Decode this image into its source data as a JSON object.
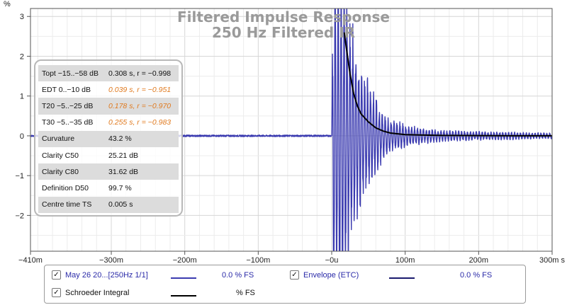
{
  "chart_data": {
    "type": "line",
    "title": "Filtered Impulse Response",
    "subtitle": "250 Hz Filtered IR",
    "ylabel": "%",
    "xlabel": "",
    "xlim": [
      -410,
      300
    ],
    "ylim": [
      -2.9,
      3.2
    ],
    "grid": true,
    "x_unit": "ms",
    "x_ticks": [
      {
        "value": -410,
        "label": "−410m"
      },
      {
        "value": -300,
        "label": "−300m"
      },
      {
        "value": -200,
        "label": "−200m"
      },
      {
        "value": -100,
        "label": "−100m"
      },
      {
        "value": 0,
        "label": "−0u"
      },
      {
        "value": 100,
        "label": "100m"
      },
      {
        "value": 200,
        "label": "200m"
      },
      {
        "value": 300,
        "label": "300m s"
      }
    ],
    "y_ticks": [
      {
        "value": 3,
        "label": "3"
      },
      {
        "value": 2,
        "label": "2"
      },
      {
        "value": 1,
        "label": "1"
      },
      {
        "value": 0,
        "label": "0"
      },
      {
        "value": -1,
        "label": "−1"
      },
      {
        "value": -2,
        "label": "−2"
      }
    ],
    "series": [
      {
        "name": "May 26 20...[250Hz 1/1]",
        "color": "#3b3bb0",
        "kind": "oscillation",
        "pre_noise_amplitude": 0.02,
        "envelope": [
          [
            0,
            0.05
          ],
          [
            2,
            5.0
          ],
          [
            10,
            5.0
          ],
          [
            20,
            4.0
          ],
          [
            30,
            2.8
          ],
          [
            40,
            2.0
          ],
          [
            50,
            1.5
          ],
          [
            60,
            1.05
          ],
          [
            70,
            0.6
          ],
          [
            80,
            0.45
          ],
          [
            100,
            0.3
          ],
          [
            120,
            0.22
          ],
          [
            150,
            0.15
          ],
          [
            200,
            0.12
          ],
          [
            250,
            0.1
          ],
          [
            300,
            0.08
          ]
        ],
        "period_ms": 4
      },
      {
        "name": "Envelope (ETC)",
        "color": "#1a1a6e",
        "kind": "hidden"
      },
      {
        "name": "Schroeder Integral",
        "color": "#000000",
        "kind": "curve",
        "points": [
          [
            17,
            2.6
          ],
          [
            20,
            2.2
          ],
          [
            25,
            1.55
          ],
          [
            30,
            1.05
          ],
          [
            35,
            0.75
          ],
          [
            40,
            0.55
          ],
          [
            50,
            0.35
          ],
          [
            60,
            0.2
          ],
          [
            70,
            0.12
          ],
          [
            80,
            0.07
          ],
          [
            100,
            0.03
          ],
          [
            120,
            0.02
          ],
          [
            150,
            0.01
          ],
          [
            200,
            0.005
          ],
          [
            250,
            0.0
          ],
          [
            300,
            0.0
          ]
        ]
      }
    ]
  },
  "stats": [
    {
      "label": "Topt −15..−58 dB",
      "value": "0.308 s,  r = −0.998",
      "style": "normal",
      "shade": true
    },
    {
      "label": "EDT  0..−10 dB",
      "value": "0.039 s, r = −0.951",
      "style": "orange",
      "shade": false
    },
    {
      "label": "T20 −5..−25 dB",
      "value": "0.178 s, r = −0.970",
      "style": "orange",
      "shade": true
    },
    {
      "label": "T30 −5..−35 dB",
      "value": "0.255 s, r = −0.983",
      "style": "orange",
      "shade": false
    },
    {
      "label": "Curvature",
      "value": "43.2 %",
      "style": "normal",
      "shade": true
    },
    {
      "label": "Clarity C50",
      "value": "25.21 dB",
      "style": "normal",
      "shade": false
    },
    {
      "label": "Clarity C80",
      "value": "31.62 dB",
      "style": "normal",
      "shade": true
    },
    {
      "label": "Definition D50",
      "value": "99.7 %",
      "style": "normal",
      "shade": false
    },
    {
      "label": "Centre time TS",
      "value": "0.005 s",
      "style": "normal",
      "shade": true
    }
  ],
  "legend": {
    "items": [
      {
        "label": "May 26 20...[250Hz 1/1]",
        "value": "0.0 % FS",
        "checked": "✓",
        "line_color": "#3b3bb0",
        "label_color": "#2a2aa8",
        "value_color": "#2a2aa8"
      },
      {
        "label": "Envelope (ETC)",
        "value": "0.0 % FS",
        "checked": "✓",
        "line_color": "#1a1a6e",
        "label_color": "#2a2aa8",
        "value_color": "#2a2aa8"
      },
      {
        "label": "Schroeder Integral",
        "value": "% FS",
        "checked": "✓",
        "line_color": "#000000",
        "label_color": "#111111",
        "value_color": "#111111"
      }
    ]
  }
}
